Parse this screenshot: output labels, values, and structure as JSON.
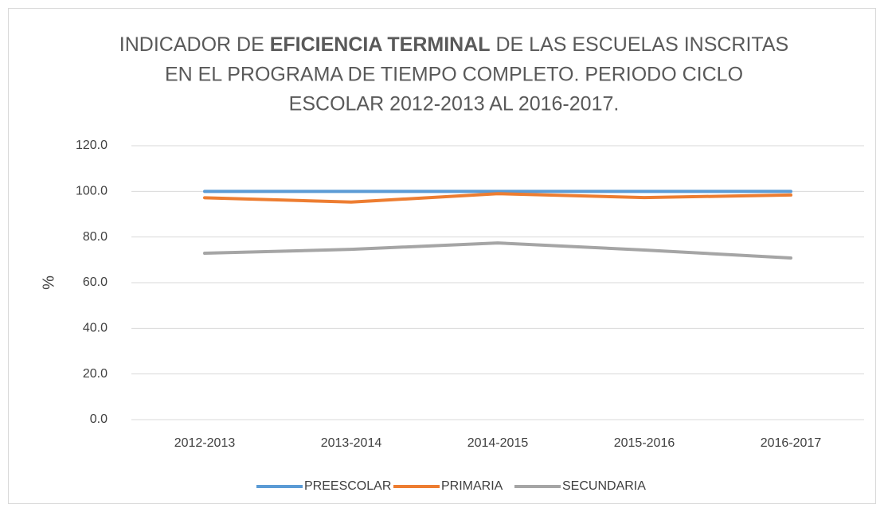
{
  "chart_data": {
    "type": "line",
    "title": [
      "INDICADOR DE",
      "EFICIENCIA TERMINAL",
      "DE LAS ESCUELAS INSCRITAS",
      "EN EL PROGRAMA DE TIEMPO COMPLETO. PERIODO CICLO",
      "ESCOLAR 2012-2013 AL 2016-2017."
    ],
    "y_label": "%",
    "categories": [
      "2012-2013",
      "2013-2014",
      "2014-2015",
      "2015-2016",
      "2016-2017"
    ],
    "series": [
      {
        "name": "PREESCOLAR",
        "color": "#5b9bd5",
        "values": [
          100,
          100,
          100,
          100,
          100
        ]
      },
      {
        "name": "PRIMARIA",
        "color": "#ed7d31",
        "values": [
          97.2,
          95.3,
          99.0,
          97.3,
          98.4
        ]
      },
      {
        "name": "SECUNDARIA",
        "color": "#a5a5a5",
        "values": [
          72.9,
          74.6,
          77.4,
          74.3,
          70.8
        ]
      }
    ],
    "ylim": [
      0,
      120
    ],
    "yticks": [
      {
        "value": 0,
        "label": "0.0"
      },
      {
        "value": 20,
        "label": "20.0"
      },
      {
        "value": 40,
        "label": "40.0"
      },
      {
        "value": 60,
        "label": "60.0"
      },
      {
        "value": 80,
        "label": "80.0"
      },
      {
        "value": 100,
        "label": "100.0"
      },
      {
        "value": 120,
        "label": "120.0"
      }
    ],
    "grid": true,
    "legend": "bottom"
  }
}
